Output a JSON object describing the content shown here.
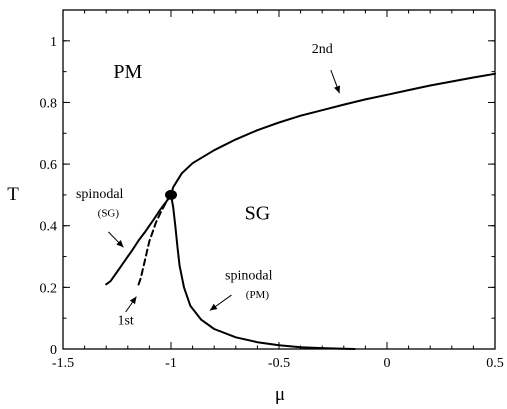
{
  "chart_data": {
    "type": "line",
    "title": "",
    "xlabel": "μ",
    "ylabel": "T",
    "xlim": [
      -1.5,
      0.5
    ],
    "ylim": [
      0,
      1.1
    ],
    "xticks": [
      -1.5,
      -1,
      -0.5,
      0,
      0.5
    ],
    "xtick_labels": [
      "-1.5",
      "-1",
      "-0.5",
      "0",
      "0.5"
    ],
    "yticks": [
      0,
      0.2,
      0.4,
      0.6,
      0.8,
      1
    ],
    "ytick_labels": [
      "0",
      "0.2",
      "0.4",
      "0.6",
      "0.8",
      "1"
    ],
    "grid": false,
    "legend": "none",
    "series": [
      {
        "style": "solid",
        "x": [
          -1.0,
          -0.99,
          -0.95,
          -0.9,
          -0.8,
          -0.7,
          -0.6,
          -0.5,
          -0.4,
          -0.3,
          -0.2,
          -0.1,
          0.0,
          0.1,
          0.2,
          0.3,
          0.4,
          0.5
        ],
        "y": [
          0.5,
          0.525,
          0.57,
          0.603,
          0.645,
          0.68,
          0.71,
          0.735,
          0.757,
          0.775,
          0.793,
          0.81,
          0.825,
          0.84,
          0.855,
          0.868,
          0.881,
          0.893
        ]
      },
      {
        "style": "solid",
        "x": [
          -1.0,
          -1.02,
          -1.05,
          -1.08,
          -1.1,
          -1.12,
          -1.15,
          -1.18,
          -1.2,
          -1.22,
          -1.25,
          -1.28,
          -1.3
        ],
        "y": [
          0.5,
          0.48,
          0.452,
          0.42,
          0.4,
          0.38,
          0.352,
          0.32,
          0.3,
          0.28,
          0.25,
          0.22,
          0.21
        ]
      },
      {
        "style": "dashed",
        "x": [
          -1.0,
          -1.02,
          -1.05,
          -1.07,
          -1.09,
          -1.1,
          -1.11,
          -1.12,
          -1.13,
          -1.14,
          -1.15,
          -1.155
        ],
        "y": [
          0.5,
          0.48,
          0.44,
          0.41,
          0.37,
          0.35,
          0.32,
          0.29,
          0.26,
          0.23,
          0.21,
          0.2
        ]
      },
      {
        "style": "solid",
        "x": [
          -1.0,
          -0.99,
          -0.98,
          -0.97,
          -0.96,
          -0.94,
          -0.91,
          -0.86,
          -0.8,
          -0.7,
          -0.6,
          -0.5,
          -0.4,
          -0.3,
          -0.2,
          -0.15
        ],
        "y": [
          0.5,
          0.46,
          0.4,
          0.33,
          0.27,
          0.2,
          0.14,
          0.095,
          0.065,
          0.038,
          0.022,
          0.012,
          0.006,
          0.003,
          0.001,
          0.0
        ]
      }
    ],
    "points": [
      {
        "x": -1.0,
        "y": 0.5
      }
    ],
    "regions": [
      {
        "text": "PM",
        "x": -1.2,
        "y": 0.88
      },
      {
        "text": "SG",
        "x": -0.6,
        "y": 0.42
      }
    ],
    "annotations": [
      {
        "text": "2nd",
        "size": "normal",
        "x": -0.3,
        "y": 0.96,
        "arrow_from": [
          -0.26,
          0.905
        ],
        "arrow_to": [
          -0.22,
          0.83
        ]
      },
      {
        "text": "spinodal",
        "size": "normal",
        "x": -1.33,
        "y": 0.49
      },
      {
        "text": "(SG)",
        "size": "small",
        "x": -1.29,
        "y": 0.43,
        "arrow_from": [
          -1.29,
          0.38
        ],
        "arrow_to": [
          -1.22,
          0.33
        ]
      },
      {
        "text": "1st",
        "size": "normal",
        "x": -1.21,
        "y": 0.08,
        "arrow_from": [
          -1.21,
          0.12
        ],
        "arrow_to": [
          -1.16,
          0.17
        ]
      },
      {
        "text": "spinodal",
        "size": "normal",
        "x": -0.64,
        "y": 0.225
      },
      {
        "text": "(PM)",
        "size": "small",
        "x": -0.6,
        "y": 0.165,
        "arrow_from": [
          -0.72,
          0.175
        ],
        "arrow_to": [
          -0.82,
          0.125
        ]
      }
    ]
  }
}
